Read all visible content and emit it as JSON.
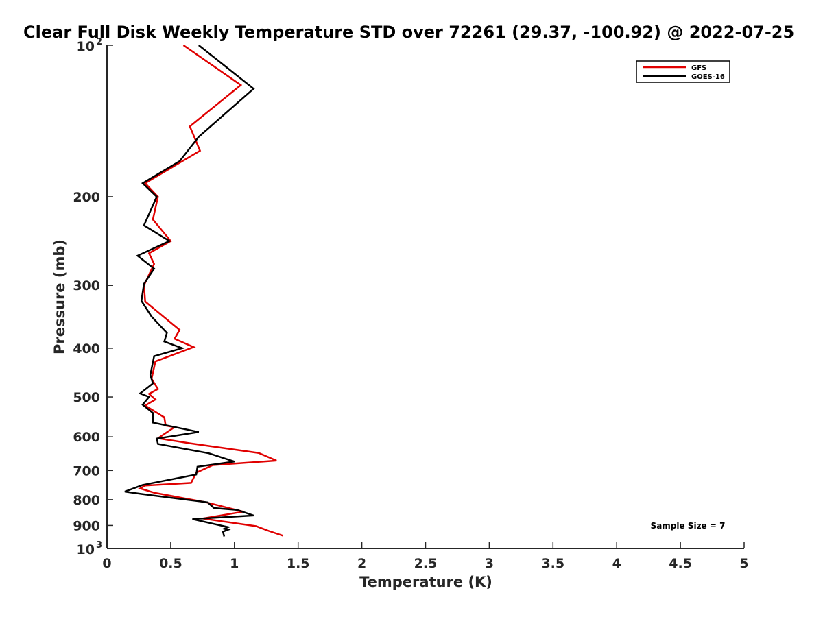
{
  "chart_data": {
    "type": "line",
    "title": "Clear Full Disk Weekly Temperature STD over 72261 (29.37, -100.92) @ 2022-07-25",
    "xlabel": "Temperature (K)",
    "ylabel": "Pressure (mb)",
    "xlim": [
      0,
      5
    ],
    "ylim": [
      100,
      1000
    ],
    "y_scale": "log",
    "y_reversed": true,
    "grid": false,
    "legend_position": "top-right",
    "x_ticks": [
      "0",
      "0.5",
      "1",
      "1.5",
      "2",
      "2.5",
      "3",
      "3.5",
      "4",
      "4.5",
      "5"
    ],
    "y_ticks": [
      "200",
      "300",
      "400",
      "500",
      "600",
      "700",
      "800",
      "900"
    ],
    "y_tick_base": "10",
    "y_tick_exponents": [
      "2",
      "3"
    ],
    "annotation": "Sample Size = 7",
    "series": [
      {
        "name": "GFS",
        "color": "#e00000",
        "points": [
          [
            0.6,
            100
          ],
          [
            1.05,
            120
          ],
          [
            0.65,
            145
          ],
          [
            0.73,
            162
          ],
          [
            0.3,
            188
          ],
          [
            0.4,
            200
          ],
          [
            0.36,
            222
          ],
          [
            0.5,
            245
          ],
          [
            0.33,
            259
          ],
          [
            0.37,
            272
          ],
          [
            0.29,
            300
          ],
          [
            0.3,
            323
          ],
          [
            0.57,
            368
          ],
          [
            0.53,
            383
          ],
          [
            0.68,
            398
          ],
          [
            0.38,
            425
          ],
          [
            0.35,
            460
          ],
          [
            0.4,
            482
          ],
          [
            0.33,
            493
          ],
          [
            0.38,
            506
          ],
          [
            0.3,
            520
          ],
          [
            0.45,
            549
          ],
          [
            0.46,
            570
          ],
          [
            0.53,
            574
          ],
          [
            0.4,
            604
          ],
          [
            0.65,
            618
          ],
          [
            1.19,
            646
          ],
          [
            1.33,
            669
          ],
          [
            0.83,
            683
          ],
          [
            0.7,
            707
          ],
          [
            0.66,
            741
          ],
          [
            0.3,
            750
          ],
          [
            0.26,
            760
          ],
          [
            0.37,
            775
          ],
          [
            0.78,
            810
          ],
          [
            1.07,
            845
          ],
          [
            0.75,
            872
          ],
          [
            1.17,
            903
          ],
          [
            1.27,
            923
          ],
          [
            1.38,
            943
          ]
        ]
      },
      {
        "name": "GOES-16",
        "color": "#000000",
        "points": [
          [
            0.72,
            100
          ],
          [
            1.15,
            122
          ],
          [
            0.72,
            152
          ],
          [
            0.57,
            170
          ],
          [
            0.28,
            188
          ],
          [
            0.39,
            200
          ],
          [
            0.29,
            228
          ],
          [
            0.49,
            245
          ],
          [
            0.24,
            262
          ],
          [
            0.37,
            278
          ],
          [
            0.29,
            298
          ],
          [
            0.27,
            322
          ],
          [
            0.35,
            346
          ],
          [
            0.47,
            373
          ],
          [
            0.45,
            388
          ],
          [
            0.59,
            400
          ],
          [
            0.37,
            415
          ],
          [
            0.34,
            452
          ],
          [
            0.36,
            470
          ],
          [
            0.26,
            492
          ],
          [
            0.33,
            500
          ],
          [
            0.28,
            518
          ],
          [
            0.36,
            538
          ],
          [
            0.36,
            562
          ],
          [
            0.72,
            587
          ],
          [
            0.39,
            605
          ],
          [
            0.4,
            620
          ],
          [
            0.8,
            647
          ],
          [
            1.0,
            672
          ],
          [
            0.71,
            688
          ],
          [
            0.7,
            713
          ],
          [
            0.28,
            748
          ],
          [
            0.14,
            771
          ],
          [
            0.28,
            780
          ],
          [
            0.79,
            810
          ],
          [
            0.84,
            831
          ],
          [
            1.02,
            838
          ],
          [
            1.15,
            860
          ],
          [
            0.67,
            874
          ],
          [
            0.95,
            907
          ],
          [
            0.92,
            914
          ],
          [
            0.95,
            918
          ],
          [
            0.91,
            926
          ],
          [
            0.92,
            947
          ]
        ]
      }
    ]
  }
}
